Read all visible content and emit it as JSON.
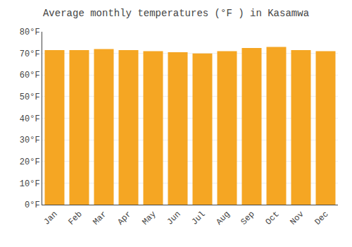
{
  "chart_data": {
    "type": "bar",
    "title": "Average monthly temperatures (°F ) in Kasamwa",
    "categories": [
      "Jan",
      "Feb",
      "Mar",
      "Apr",
      "May",
      "Jun",
      "Jul",
      "Aug",
      "Sep",
      "Oct",
      "Nov",
      "Dec"
    ],
    "values": [
      71.5,
      71.5,
      72.0,
      71.5,
      71.0,
      70.5,
      70.0,
      71.0,
      72.5,
      73.0,
      71.5,
      71.0
    ],
    "color": "#F5A623",
    "ylim": [
      0,
      80
    ],
    "yticks": [
      {
        "value": 0,
        "label": "0°F"
      },
      {
        "value": 10,
        "label": "10°F"
      },
      {
        "value": 20,
        "label": "20°F"
      },
      {
        "value": 30,
        "label": "30°F"
      },
      {
        "value": 40,
        "label": "40°F"
      },
      {
        "value": 50,
        "label": "50°F"
      },
      {
        "value": 60,
        "label": "60°F"
      },
      {
        "value": 70,
        "label": "70°F"
      },
      {
        "value": 80,
        "label": "80°F"
      }
    ],
    "grid": true
  }
}
